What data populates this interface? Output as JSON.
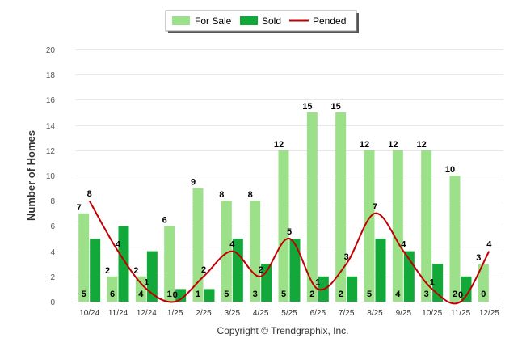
{
  "chart_data": {
    "type": "bar",
    "categories": [
      "10/24",
      "11/24",
      "12/24",
      "1/25",
      "2/25",
      "3/25",
      "4/25",
      "5/25",
      "6/25",
      "7/25",
      "8/25",
      "9/25",
      "10/25",
      "11/25",
      "12/25"
    ],
    "series": [
      {
        "name": "For Sale",
        "kind": "bar",
        "color": "#9de08a",
        "values": [
          7,
          2,
          2,
          6,
          9,
          8,
          8,
          12,
          15,
          15,
          12,
          12,
          12,
          10,
          3
        ]
      },
      {
        "name": "Sold",
        "kind": "bar",
        "color": "#13a83a",
        "values": [
          5,
          6,
          4,
          1,
          1,
          5,
          3,
          5,
          2,
          2,
          5,
          4,
          3,
          2,
          0
        ]
      },
      {
        "name": "Pended",
        "kind": "line",
        "color": "#c00000",
        "values": [
          8,
          4,
          1,
          0,
          2,
          4,
          2,
          5,
          1,
          3,
          7,
          4,
          1,
          0,
          4
        ]
      }
    ],
    "ylabel": "Number of Homes",
    "ylim": [
      0,
      20
    ],
    "yticks": [
      0,
      2,
      4,
      6,
      8,
      10,
      12,
      14,
      16,
      18,
      20
    ],
    "legend_position": "top-center",
    "credit": "Copyright © Trendgraphix, Inc."
  }
}
